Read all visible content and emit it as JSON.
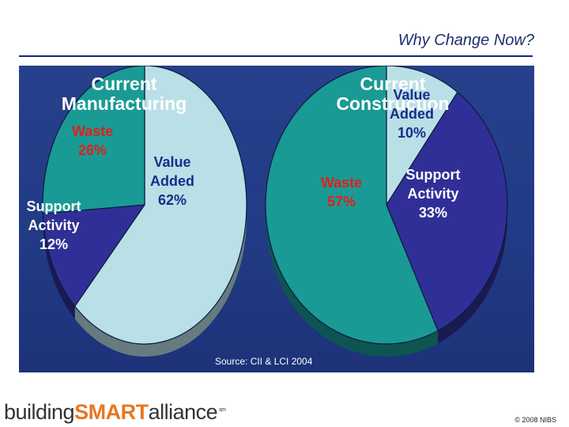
{
  "slide": {
    "title": "Why Change Now?",
    "source": "Source: CII & LCI 2004",
    "copyright": "© 2008 NIBS",
    "logo": {
      "prefix": "building",
      "brand": "SMART",
      "suffix": "alliance",
      "mark": "sm"
    }
  },
  "colors": {
    "panel_background": "#27408b",
    "value_added": "#b9e0e6",
    "waste": "#1a9a94",
    "support_activity": "#302f97",
    "label_red": "#e0201b",
    "label_dark_blue": "#1c2b8a",
    "label_white": "#ffffff"
  },
  "chart_data": [
    {
      "type": "pie",
      "title_lines": [
        "Current",
        "Manufacturing"
      ],
      "slices": [
        {
          "key": "value_added",
          "label_lines": [
            "Value",
            "Added"
          ],
          "value": 62,
          "value_text": "62%"
        },
        {
          "key": "support_activity",
          "label_lines": [
            "Support",
            "Activity"
          ],
          "value": 12,
          "value_text": "12%"
        },
        {
          "key": "waste",
          "label_lines": [
            "Waste"
          ],
          "value": 26,
          "value_text": "26%"
        }
      ]
    },
    {
      "type": "pie",
      "title_lines": [
        "Current",
        "Construction"
      ],
      "slices": [
        {
          "key": "value_added",
          "label_lines": [
            "Value",
            "Added"
          ],
          "value": 10,
          "value_text": "10%"
        },
        {
          "key": "support_activity",
          "label_lines": [
            "Support",
            "Activity"
          ],
          "value": 33,
          "value_text": "33%"
        },
        {
          "key": "waste",
          "label_lines": [
            "Waste"
          ],
          "value": 57,
          "value_text": "57%"
        }
      ]
    }
  ]
}
